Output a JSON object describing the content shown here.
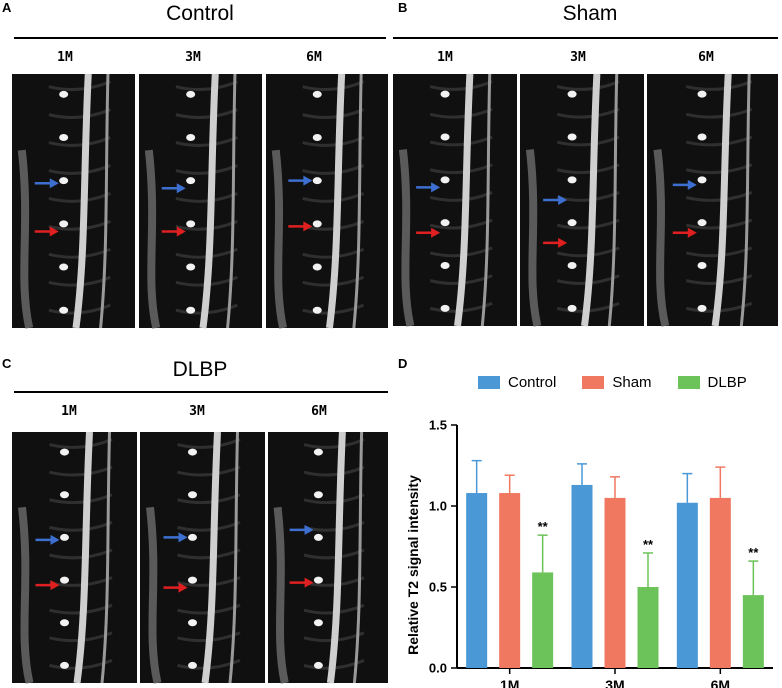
{
  "panels": {
    "A": {
      "letter": "A",
      "title": "Control",
      "timepoints": [
        "1M",
        "3M",
        "6M"
      ]
    },
    "B": {
      "letter": "B",
      "title": "Sham",
      "timepoints": [
        "1M",
        "3M",
        "6M"
      ]
    },
    "C": {
      "letter": "C",
      "title": "DLBP",
      "timepoints": [
        "1M",
        "3M",
        "6M"
      ]
    },
    "D": {
      "letter": "D"
    }
  },
  "arrow_colors": {
    "upper": "#3d6fd1",
    "lower": "#e02020"
  },
  "chart_data": {
    "type": "bar",
    "categories": [
      "1M",
      "3M",
      "6M"
    ],
    "series": [
      {
        "name": "Control",
        "color": "#4a98d6",
        "values": [
          1.08,
          1.13,
          1.02
        ],
        "errors": [
          0.2,
          0.13,
          0.18
        ]
      },
      {
        "name": "Sham",
        "color": "#f07860",
        "values": [
          1.08,
          1.05,
          1.05
        ],
        "errors": [
          0.11,
          0.13,
          0.19
        ]
      },
      {
        "name": "DLBP",
        "color": "#6cc35a",
        "values": [
          0.59,
          0.5,
          0.45
        ],
        "errors": [
          0.23,
          0.21,
          0.21
        ]
      }
    ],
    "annotations": [
      "**",
      "**",
      "**"
    ],
    "ylabel": "Relative T2 signal  intensity",
    "xlabel": "",
    "ylim": [
      0.0,
      1.5
    ],
    "yticks": [
      "0.0",
      "0.5",
      "1.0",
      "1.5"
    ],
    "legend_position": "top",
    "grid": false
  }
}
